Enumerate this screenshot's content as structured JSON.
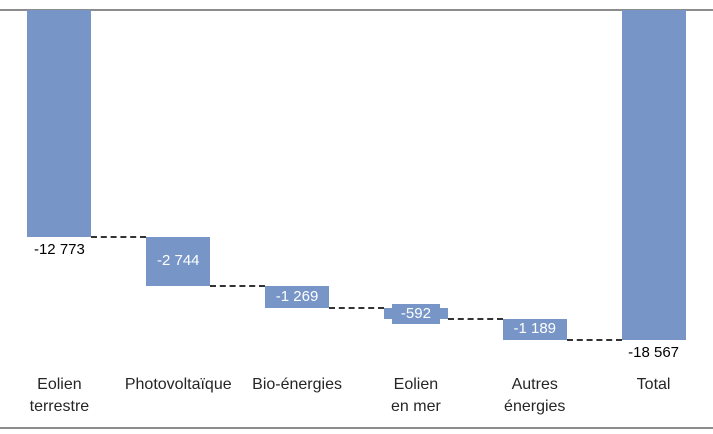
{
  "chart_data": {
    "type": "waterfall",
    "title": "",
    "categories": [
      "Eolien terrestre",
      "Photovoltaïque",
      "Bio-énergies",
      "Eolien en mer",
      "Autres énergies",
      "Total"
    ],
    "category_lines": [
      [
        "Eolien",
        "terrestre"
      ],
      [
        "Photovoltaïque"
      ],
      [
        "Bio-énergies"
      ],
      [
        "Eolien",
        "en mer"
      ],
      [
        "Autres",
        "énergies"
      ],
      [
        "Total"
      ]
    ],
    "values": [
      -12773,
      -2744,
      -1269,
      -592,
      -1189,
      -18567
    ],
    "labels": [
      "-12 773",
      "-2 744",
      "-1 269",
      "-592",
      "-1 189",
      "-18 567"
    ],
    "label_position": [
      "outside",
      "inside",
      "inside",
      "inside",
      "inside",
      "outside"
    ],
    "is_total": [
      false,
      false,
      false,
      false,
      false,
      true
    ],
    "bar_color": "#7796c7",
    "inside_label_color": "#ffffff",
    "outside_label_color": "#000000",
    "connector_style": "dashed",
    "axis_range": [
      -18567,
      0
    ],
    "gridlines": false,
    "legend": "none",
    "xlabel": "",
    "ylabel": ""
  }
}
